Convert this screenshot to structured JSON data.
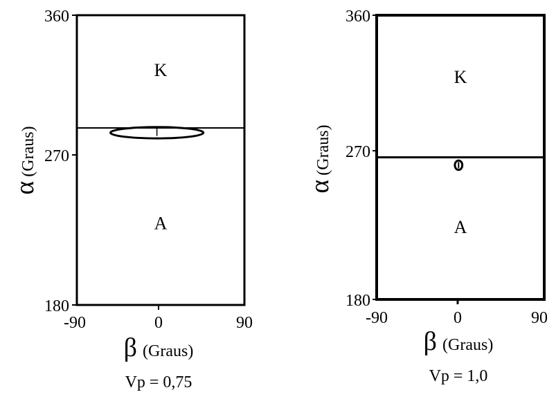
{
  "chart_data": [
    {
      "type": "region-plot",
      "xlabel": "β (Graus)",
      "x_symbol": "β",
      "x_word": "(Graus)",
      "ylabel": "α (Graus)",
      "y_symbol": "α",
      "y_word": "(Graus)",
      "xlim": [
        -90,
        90
      ],
      "ylim": [
        180,
        360
      ],
      "x_ticks": [
        "-90",
        "0",
        "90"
      ],
      "y_ticks": [
        "360",
        "270",
        "180"
      ],
      "boundary_alpha": 290,
      "regions": [
        {
          "label": "K",
          "beta": 0,
          "alpha": 326
        },
        {
          "label": "A",
          "beta": 0,
          "alpha": 231
        }
      ],
      "ellipse": {
        "beta_center": -4,
        "alpha_center": 287,
        "beta_halfwidth": 50,
        "alpha_halfheight": 3.5
      },
      "inner_line": {
        "beta": -4,
        "alpha_from": 285,
        "alpha_to": 290
      },
      "caption": "Vp = 0,75"
    },
    {
      "type": "region-plot",
      "xlabel": "β (Graus)",
      "x_symbol": "β",
      "x_word": "(Graus)",
      "ylabel": "α (Graus)",
      "y_symbol": "α",
      "y_word": "(Graus)",
      "xlim": [
        -90,
        90
      ],
      "ylim": [
        180,
        360
      ],
      "x_ticks": [
        "-90",
        "0",
        "90"
      ],
      "y_ticks": [
        "360",
        "270",
        "180"
      ],
      "boundary_alpha": 270,
      "regions": [
        {
          "label": "K",
          "beta": 0,
          "alpha": 321
        },
        {
          "label": "A",
          "beta": 0,
          "alpha": 226
        }
      ],
      "ellipse": {
        "beta_center": -2,
        "alpha_center": 265,
        "beta_halfwidth": 4,
        "alpha_halfheight": 3
      },
      "inner_line": {
        "beta": -2,
        "alpha_from": 263,
        "alpha_to": 267
      },
      "caption": "Vp = 1,0"
    }
  ]
}
